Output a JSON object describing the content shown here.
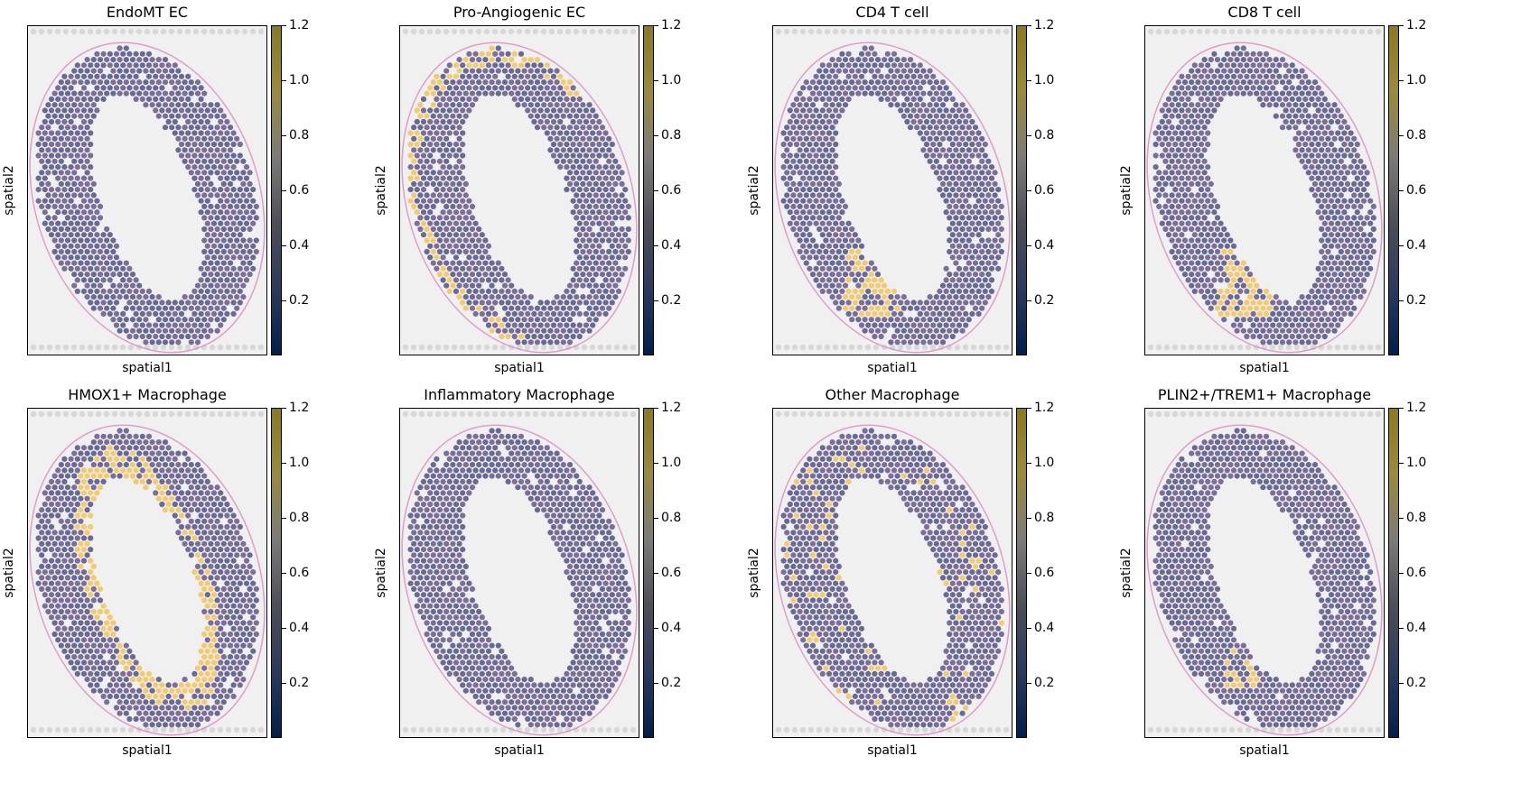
{
  "chart_data": [
    {
      "type": "scatter",
      "title": "EndoMT EC",
      "xlabel": "spatial1",
      "ylabel": "spatial2",
      "colorbar": {
        "ticks": [
          "0.2",
          "0.4",
          "0.6",
          "0.8",
          "1.0",
          "1.2"
        ],
        "range": [
          0,
          1.2
        ],
        "colormap": "cividis"
      },
      "hotspots": []
    },
    {
      "type": "scatter",
      "title": "Pro-Angiogenic EC",
      "xlabel": "spatial1",
      "ylabel": "spatial2",
      "colorbar": {
        "ticks": [
          "0.2",
          "0.4",
          "0.6",
          "0.8",
          "1.0",
          "1.2"
        ],
        "range": [
          0,
          1.2
        ],
        "colormap": "cividis"
      },
      "hotspots": [
        "outer-rim"
      ]
    },
    {
      "type": "scatter",
      "title": "CD4 T cell",
      "xlabel": "spatial1",
      "ylabel": "spatial2",
      "colorbar": {
        "ticks": [
          "0.2",
          "0.4",
          "0.6",
          "0.8",
          "1.0",
          "1.2"
        ],
        "range": [
          0,
          1.2
        ],
        "colormap": "cividis"
      },
      "hotspots": [
        "lower-left"
      ]
    },
    {
      "type": "scatter",
      "title": "CD8 T cell",
      "xlabel": "spatial1",
      "ylabel": "spatial2",
      "colorbar": {
        "ticks": [
          "0.2",
          "0.4",
          "0.6",
          "0.8",
          "1.0",
          "1.2"
        ],
        "range": [
          0,
          1.2
        ],
        "colormap": "cividis"
      },
      "hotspots": [
        "lower-left"
      ]
    },
    {
      "type": "scatter",
      "title": "HMOX1+ Macrophage",
      "xlabel": "spatial1",
      "ylabel": "spatial2",
      "colorbar": {
        "ticks": [
          "0.2",
          "0.4",
          "0.6",
          "0.8",
          "1.0",
          "1.2"
        ],
        "range": [
          0,
          1.2
        ],
        "colormap": "cividis"
      },
      "hotspots": [
        "inner-rim"
      ]
    },
    {
      "type": "scatter",
      "title": "Inflammatory Macrophage",
      "xlabel": "spatial1",
      "ylabel": "spatial2",
      "colorbar": {
        "ticks": [
          "0.2",
          "0.4",
          "0.6",
          "0.8",
          "1.0",
          "1.2"
        ],
        "range": [
          0,
          1.2
        ],
        "colormap": "cividis"
      },
      "hotspots": []
    },
    {
      "type": "scatter",
      "title": "Other Macrophage",
      "xlabel": "spatial1",
      "ylabel": "spatial2",
      "colorbar": {
        "ticks": [
          "0.2",
          "0.4",
          "0.6",
          "0.8",
          "1.0",
          "1.2"
        ],
        "range": [
          0,
          1.2
        ],
        "colormap": "cividis"
      },
      "hotspots": [
        "scattered"
      ]
    },
    {
      "type": "scatter",
      "title": "PLIN2+/TREM1+ Macrophage",
      "xlabel": "spatial1",
      "ylabel": "spatial2",
      "colorbar": {
        "ticks": [
          "0.2",
          "0.4",
          "0.6",
          "0.8",
          "1.0",
          "1.2"
        ],
        "range": [
          0,
          1.2
        ],
        "colormap": "cividis"
      },
      "hotspots": [
        "lower-left-small"
      ]
    }
  ],
  "colors": {
    "spot": "#5a5a8c",
    "spot_alt": "#6e5f8f",
    "hot": "#f2c35a",
    "tissue_pink": "#d98ac0",
    "background": "#f0f0f0",
    "cbar_low": "#00204c",
    "cbar_mid": "#7c7b78",
    "cbar_high": "#ffe945"
  }
}
